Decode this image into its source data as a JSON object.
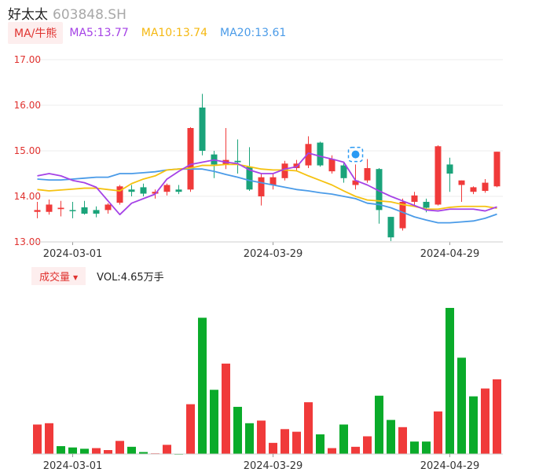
{
  "header": {
    "name": "好太太",
    "code": "603848.SH"
  },
  "ma": {
    "button_label": "MA/牛熊",
    "ma5_label": "MA5:13.77",
    "ma10_label": "MA10:13.74",
    "ma20_label": "MA20:13.61",
    "colors": {
      "ma5": "#a542e6",
      "ma10": "#f5c211",
      "ma20": "#4a9be8"
    }
  },
  "volume_panel": {
    "button_label": "成交量",
    "value_label": "VOL:4.65万手"
  },
  "colors": {
    "up": "#f03a3a",
    "down": "#1aa37a",
    "vol_up": "#f03a3a",
    "vol_down": "#0aab2a",
    "marker": "#2b9af3"
  },
  "chart_data": [
    {
      "type": "candlestick",
      "y_ticks": [
        "17.00",
        "16.00",
        "15.00",
        "14.00",
        "13.00"
      ],
      "ylim": [
        13.0,
        17.0
      ],
      "x_ticks": [
        {
          "label": "2024-03-01",
          "index": 3
        },
        {
          "label": "2024-03-29",
          "index": 20
        },
        {
          "label": "2024-04-29",
          "index": 35
        }
      ],
      "candles": [
        {
          "o": 13.66,
          "h": 13.88,
          "l": 13.52,
          "c": 13.7
        },
        {
          "o": 13.66,
          "h": 13.93,
          "l": 13.6,
          "c": 13.82
        },
        {
          "o": 13.72,
          "h": 13.9,
          "l": 13.56,
          "c": 13.75
        },
        {
          "o": 13.7,
          "h": 13.88,
          "l": 13.52,
          "c": 13.68
        },
        {
          "o": 13.76,
          "h": 13.9,
          "l": 13.6,
          "c": 13.62
        },
        {
          "o": 13.7,
          "h": 13.78,
          "l": 13.54,
          "c": 13.62
        },
        {
          "o": 13.7,
          "h": 13.85,
          "l": 13.62,
          "c": 13.82
        },
        {
          "o": 13.86,
          "h": 14.25,
          "l": 13.82,
          "c": 14.22
        },
        {
          "o": 14.15,
          "h": 14.25,
          "l": 14.0,
          "c": 14.1
        },
        {
          "o": 14.2,
          "h": 14.28,
          "l": 14.0,
          "c": 14.06
        },
        {
          "o": 14.06,
          "h": 14.15,
          "l": 13.95,
          "c": 14.1
        },
        {
          "o": 14.1,
          "h": 14.28,
          "l": 14.02,
          "c": 14.25
        },
        {
          "o": 14.15,
          "h": 14.25,
          "l": 14.05,
          "c": 14.1
        },
        {
          "o": 14.15,
          "h": 15.52,
          "l": 14.1,
          "c": 15.5
        },
        {
          "o": 15.95,
          "h": 16.25,
          "l": 14.9,
          "c": 15.0
        },
        {
          "o": 14.92,
          "h": 15.0,
          "l": 14.4,
          "c": 14.7
        },
        {
          "o": 14.7,
          "h": 15.5,
          "l": 14.6,
          "c": 14.8
        },
        {
          "o": 14.78,
          "h": 15.25,
          "l": 14.5,
          "c": 14.75
        },
        {
          "o": 14.65,
          "h": 15.08,
          "l": 14.12,
          "c": 14.15
        },
        {
          "o": 14.0,
          "h": 14.5,
          "l": 13.8,
          "c": 14.42
        },
        {
          "o": 14.25,
          "h": 14.5,
          "l": 14.15,
          "c": 14.42
        },
        {
          "o": 14.4,
          "h": 14.78,
          "l": 14.35,
          "c": 14.72
        },
        {
          "o": 14.62,
          "h": 14.8,
          "l": 14.55,
          "c": 14.72
        },
        {
          "o": 14.68,
          "h": 15.32,
          "l": 14.62,
          "c": 15.15
        },
        {
          "o": 15.18,
          "h": 15.2,
          "l": 14.65,
          "c": 14.68
        },
        {
          "o": 14.55,
          "h": 14.9,
          "l": 14.5,
          "c": 14.82
        },
        {
          "o": 14.68,
          "h": 14.75,
          "l": 14.3,
          "c": 14.4
        },
        {
          "o": 14.25,
          "h": 14.7,
          "l": 14.15,
          "c": 14.35
        },
        {
          "o": 14.35,
          "h": 14.82,
          "l": 14.3,
          "c": 14.62
        },
        {
          "o": 14.6,
          "h": 14.62,
          "l": 13.4,
          "c": 13.7
        },
        {
          "o": 13.55,
          "h": 13.55,
          "l": 13.02,
          "c": 13.1
        },
        {
          "o": 13.3,
          "h": 13.95,
          "l": 13.25,
          "c": 13.88
        },
        {
          "o": 13.88,
          "h": 14.1,
          "l": 13.8,
          "c": 14.02
        },
        {
          "o": 13.88,
          "h": 13.95,
          "l": 13.65,
          "c": 13.75
        },
        {
          "o": 13.82,
          "h": 15.12,
          "l": 13.8,
          "c": 15.1
        },
        {
          "o": 14.7,
          "h": 14.85,
          "l": 14.1,
          "c": 14.5
        },
        {
          "o": 14.25,
          "h": 14.35,
          "l": 13.88,
          "c": 14.35
        },
        {
          "o": 14.1,
          "h": 14.22,
          "l": 14.05,
          "c": 14.2
        },
        {
          "o": 14.12,
          "h": 14.38,
          "l": 14.08,
          "c": 14.3
        },
        {
          "o": 14.22,
          "h": 14.98,
          "l": 14.2,
          "c": 14.98
        }
      ],
      "ma5": [
        14.45,
        14.5,
        14.45,
        14.35,
        14.3,
        14.2,
        13.9,
        13.6,
        13.85,
        13.95,
        14.05,
        14.38,
        14.55,
        14.7,
        14.75,
        14.8,
        14.75,
        14.72,
        14.58,
        14.5,
        14.5,
        14.6,
        14.65,
        14.95,
        14.88,
        14.82,
        14.75,
        14.35,
        14.25,
        14.12,
        14.0,
        13.9,
        13.8,
        13.7,
        13.68,
        13.72,
        13.72,
        13.72,
        13.68,
        13.77
      ],
      "ma10": [
        14.15,
        14.12,
        14.14,
        14.16,
        14.18,
        14.18,
        14.15,
        14.12,
        14.28,
        14.38,
        14.45,
        14.58,
        14.6,
        14.62,
        14.68,
        14.68,
        14.7,
        14.7,
        14.65,
        14.6,
        14.58,
        14.58,
        14.56,
        14.45,
        14.35,
        14.25,
        14.12,
        14.0,
        13.92,
        13.9,
        13.88,
        13.82,
        13.78,
        13.72,
        13.72,
        13.76,
        13.78,
        13.78,
        13.78,
        13.74
      ],
      "ma20": [
        14.38,
        14.36,
        14.36,
        14.38,
        14.4,
        14.42,
        14.42,
        14.5,
        14.5,
        14.52,
        14.54,
        14.58,
        14.6,
        14.6,
        14.6,
        14.55,
        14.48,
        14.42,
        14.35,
        14.3,
        14.25,
        14.2,
        14.15,
        14.12,
        14.08,
        14.05,
        14.0,
        13.95,
        13.85,
        13.82,
        13.75,
        13.65,
        13.55,
        13.48,
        13.42,
        13.42,
        13.44,
        13.46,
        13.52,
        13.61
      ]
    },
    {
      "type": "bar",
      "series_name": "VOL",
      "values": [
        22.5,
        23.5,
        6,
        5,
        4,
        4.5,
        3,
        10,
        5.5,
        1.5,
        0.5,
        7,
        0,
        38,
        104,
        49,
        69,
        36,
        23.5,
        25.5,
        8.5,
        19,
        17,
        39.5,
        15,
        4.5,
        22.5,
        5.5,
        13.5,
        44.5,
        26,
        20.5,
        9.5,
        9.5,
        32.5,
        111.5,
        73.5,
        44,
        50,
        57
      ],
      "up": [
        1,
        1,
        0,
        0,
        0,
        1,
        1,
        1,
        0,
        0,
        1,
        1,
        0,
        1,
        0,
        0,
        1,
        0,
        0,
        1,
        1,
        1,
        1,
        1,
        0,
        1,
        0,
        1,
        1,
        0,
        0,
        1,
        0,
        0,
        1,
        0,
        0,
        0,
        1,
        1
      ],
      "ylim": [
        0,
        111.5
      ]
    }
  ]
}
